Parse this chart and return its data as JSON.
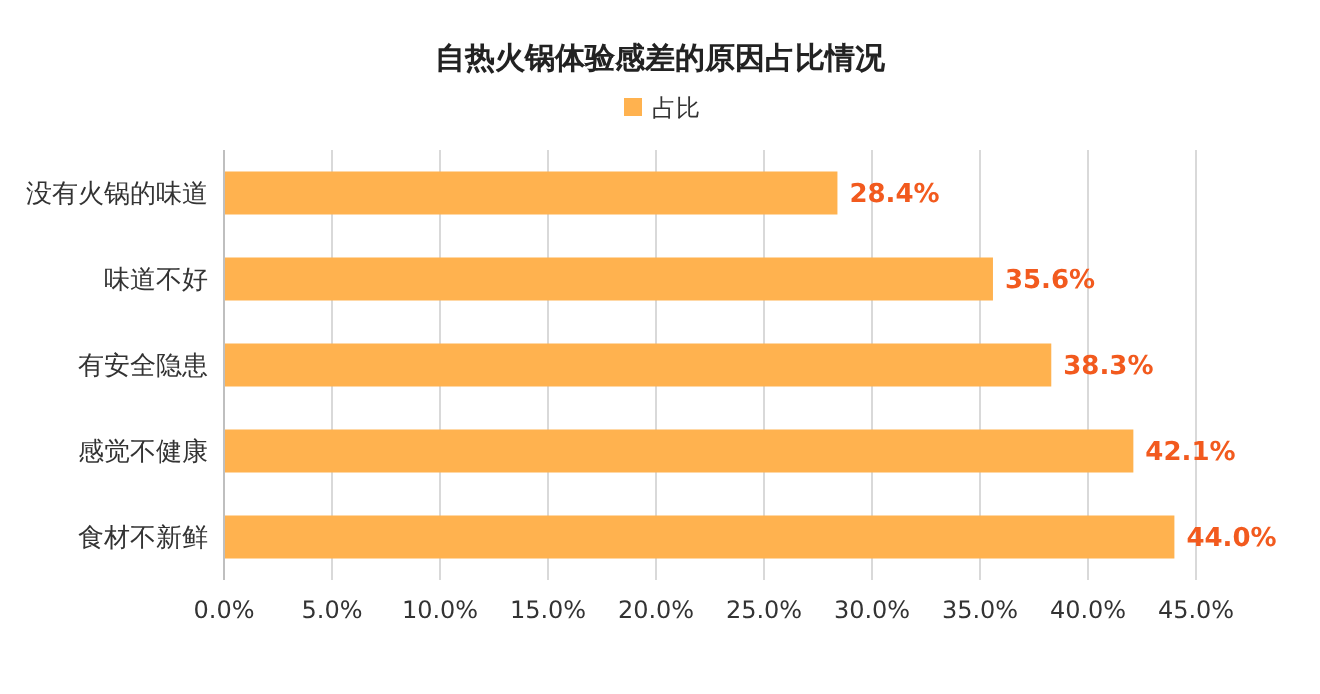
{
  "chart_data": {
    "type": "bar",
    "orientation": "horizontal",
    "title": "自热火锅体验感差的原因占比情况",
    "categories": [
      "没有火锅的味道",
      "味道不好",
      "有安全隐患",
      "感觉不健康",
      "食材不新鲜"
    ],
    "series": [
      {
        "name": "占比",
        "color": "#ffb24f",
        "values": [
          28.4,
          35.6,
          38.3,
          42.1,
          44.0
        ],
        "value_labels": [
          "28.4%",
          "35.6%",
          "38.3%",
          "42.1%",
          "44.0%"
        ]
      }
    ],
    "xlim": [
      0,
      45
    ],
    "xticks": [
      {
        "value": 0,
        "label": "0.0%"
      },
      {
        "value": 5,
        "label": "5.0%"
      },
      {
        "value": 10,
        "label": "10.0%"
      },
      {
        "value": 15,
        "label": "15.0%"
      },
      {
        "value": 20,
        "label": "20.0%"
      },
      {
        "value": 25,
        "label": "25.0%"
      },
      {
        "value": 30,
        "label": "30.0%"
      },
      {
        "value": 35,
        "label": "35.0%"
      },
      {
        "value": 40,
        "label": "40.0%"
      },
      {
        "value": 45,
        "label": "45.0%"
      }
    ],
    "grid": "x",
    "legend": "top"
  }
}
